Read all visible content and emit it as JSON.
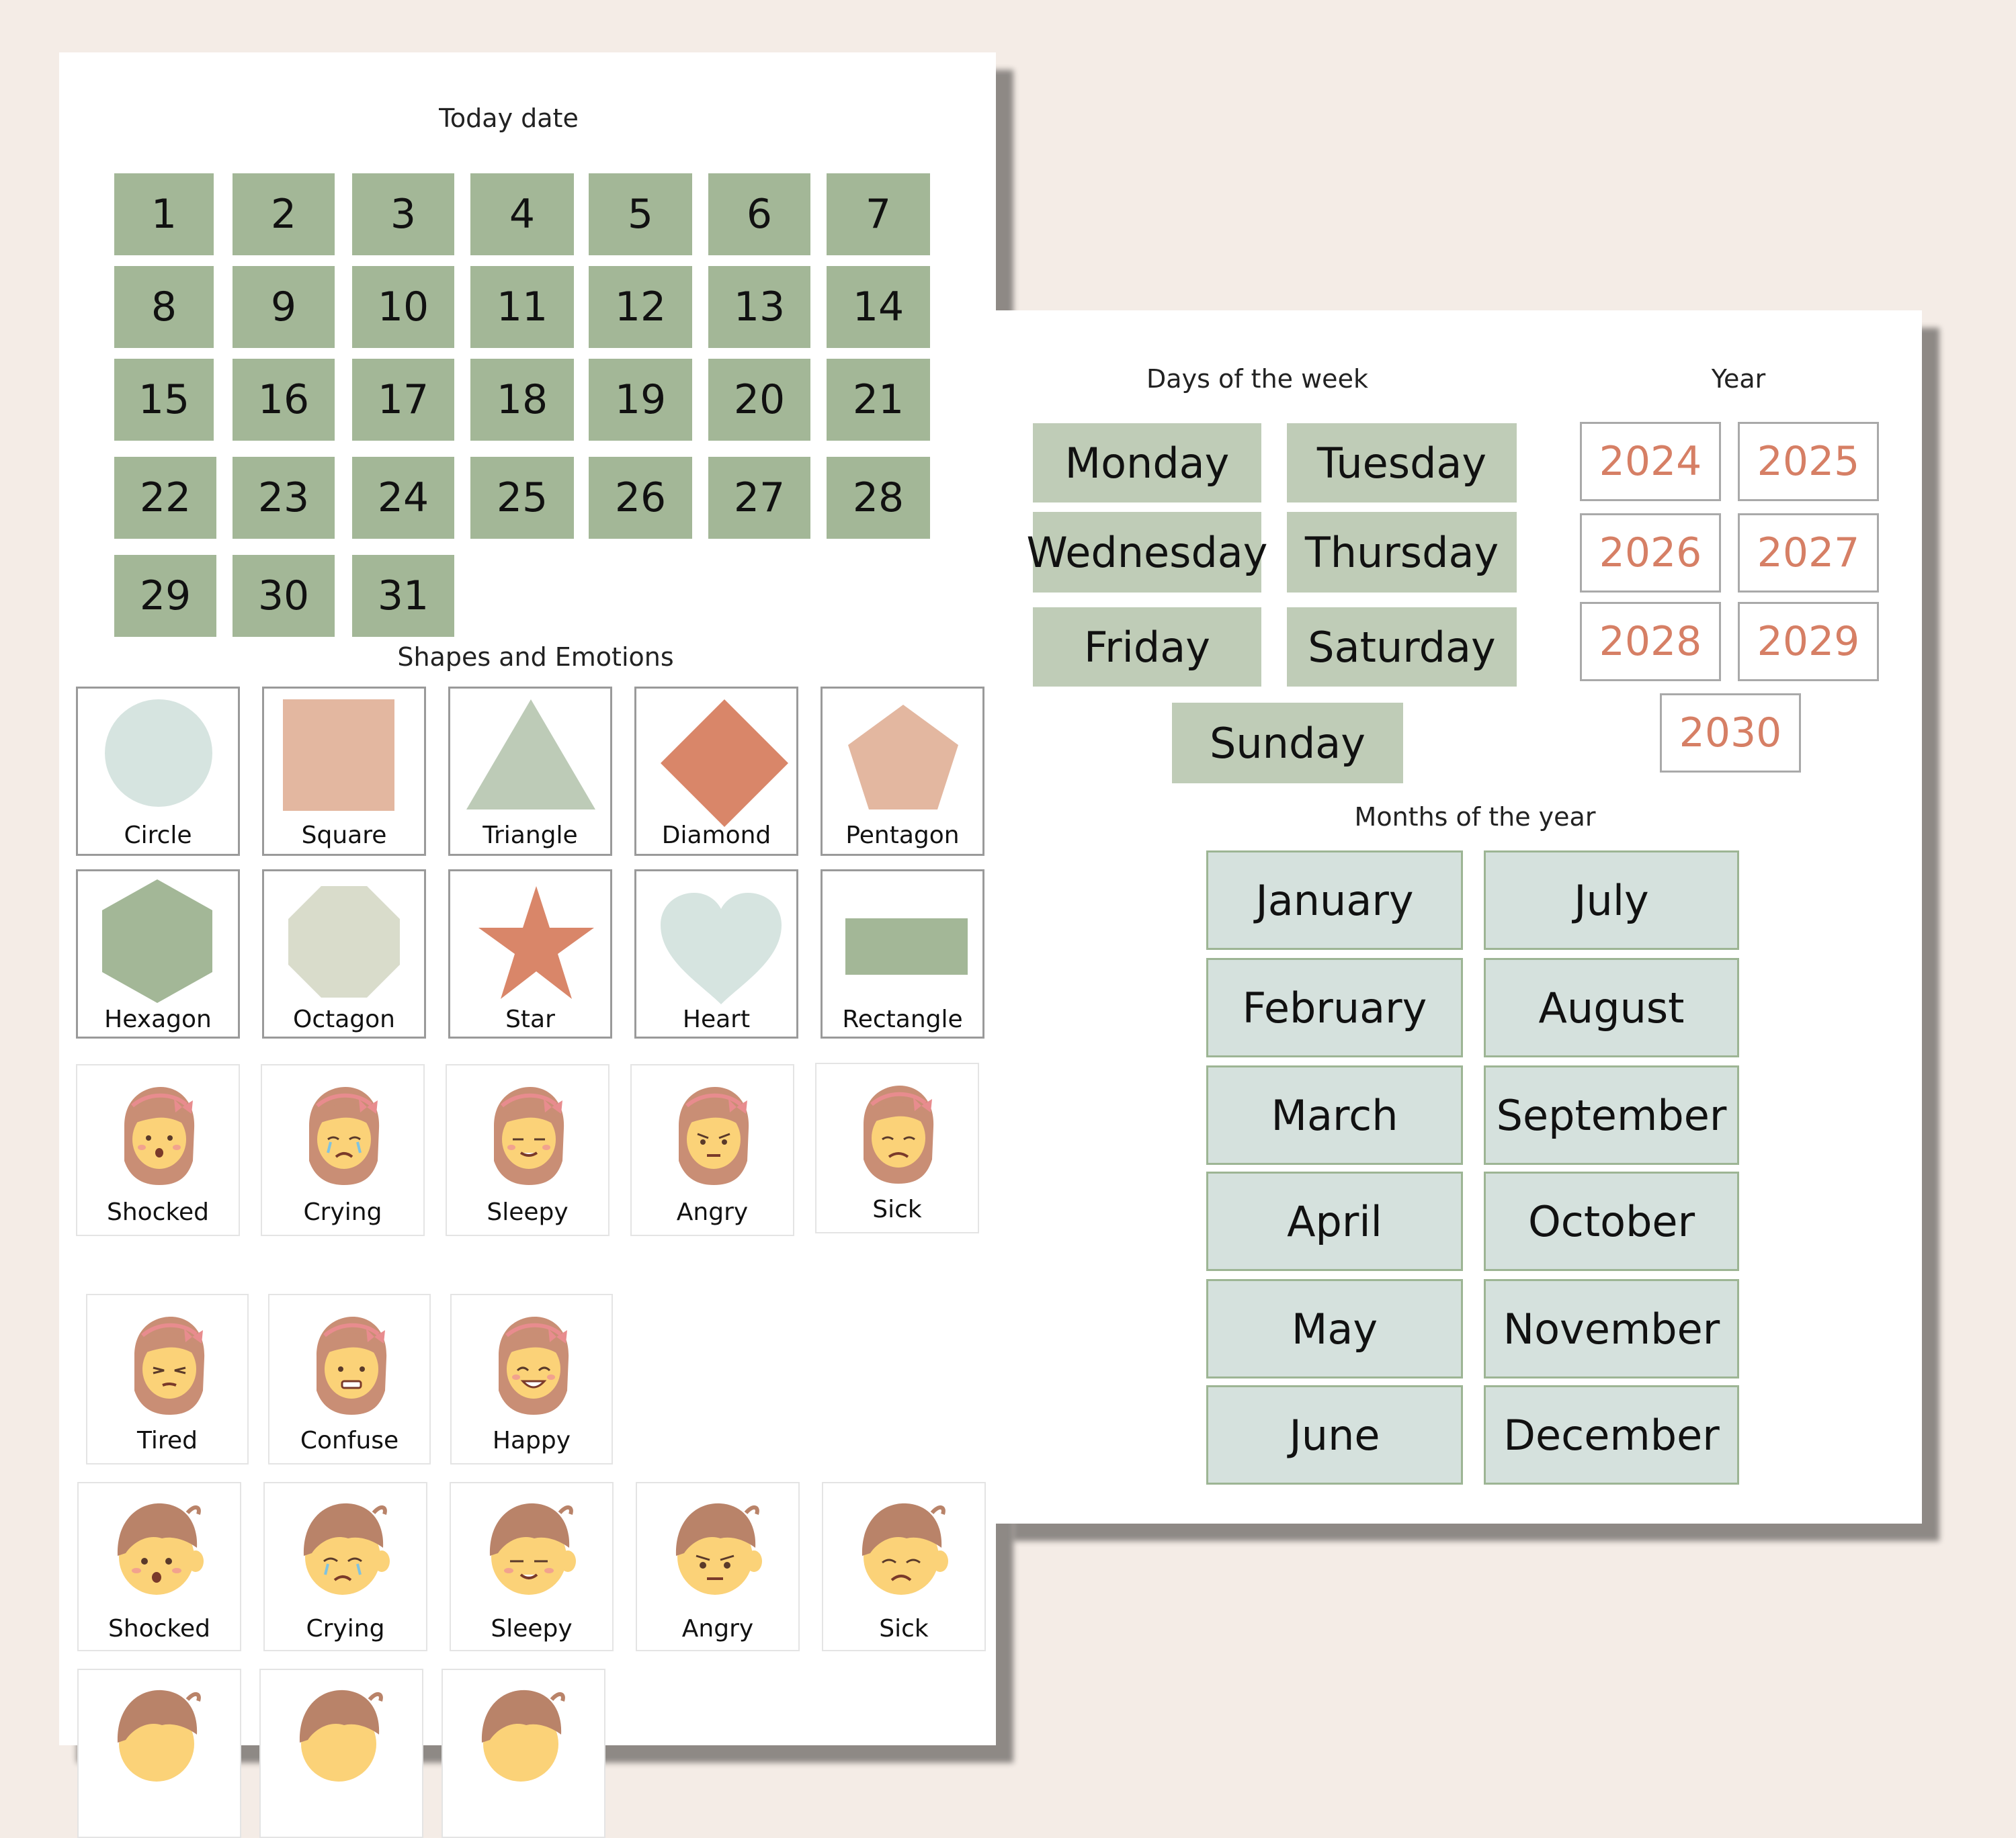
{
  "today": {
    "heading": "Today date",
    "days": [
      "1",
      "2",
      "3",
      "4",
      "5",
      "6",
      "7",
      "8",
      "9",
      "10",
      "11",
      "12",
      "13",
      "14",
      "15",
      "16",
      "17",
      "18",
      "19",
      "20",
      "21",
      "22",
      "23",
      "24",
      "25",
      "26",
      "27",
      "28",
      "29",
      "30",
      "31"
    ]
  },
  "shapes": {
    "heading": "Shapes and Emotions",
    "items": [
      {
        "label": "Circle",
        "icon": "circle-icon",
        "color": "#d6e4e0"
      },
      {
        "label": "Square",
        "icon": "square-icon",
        "color": "#e3b7a0"
      },
      {
        "label": "Triangle",
        "icon": "triangle-icon",
        "color": "#bdcbb7"
      },
      {
        "label": "Diamond",
        "icon": "diamond-icon",
        "color": "#d98669"
      },
      {
        "label": "Pentagon",
        "icon": "pentagon-icon",
        "color": "#e3b7a0"
      },
      {
        "label": "Hexagon",
        "icon": "hexagon-icon",
        "color": "#a3b797"
      },
      {
        "label": "Octagon",
        "icon": "octagon-icon",
        "color": "#d9dccb"
      },
      {
        "label": "Star",
        "icon": "star-icon",
        "color": "#d98669"
      },
      {
        "label": "Heart",
        "icon": "heart-icon",
        "color": "#d6e4e0"
      },
      {
        "label": "Rectangle",
        "icon": "rectangle-icon",
        "color": "#a3b797"
      }
    ]
  },
  "emotions": {
    "girl_row1": [
      "Shocked",
      "Crying",
      "Sleepy",
      "Angry",
      "Sick"
    ],
    "girl_row2": [
      "Tired",
      "Confuse",
      "Happy"
    ],
    "boy_row1": [
      "Shocked",
      "Crying",
      "Sleepy",
      "Angry",
      "Sick"
    ]
  },
  "week": {
    "heading": "Days of the week",
    "days": [
      "Monday",
      "Tuesday",
      "Wednesday",
      "Thursday",
      "Friday",
      "Saturday",
      "Sunday"
    ]
  },
  "year": {
    "heading": "Year",
    "values": [
      "2024",
      "2025",
      "2026",
      "2027",
      "2028",
      "2029",
      "2030"
    ]
  },
  "months": {
    "heading": "Months of the year",
    "values": [
      "January",
      "July",
      "February",
      "August",
      "March",
      "September",
      "April",
      "October",
      "May",
      "November",
      "June",
      "December"
    ]
  },
  "colors": {
    "background": "#f4ece6",
    "sage": "#a3b797",
    "light_sage": "#bfccb7",
    "mint": "#d5e1dd",
    "terracotta": "#d67f65"
  }
}
